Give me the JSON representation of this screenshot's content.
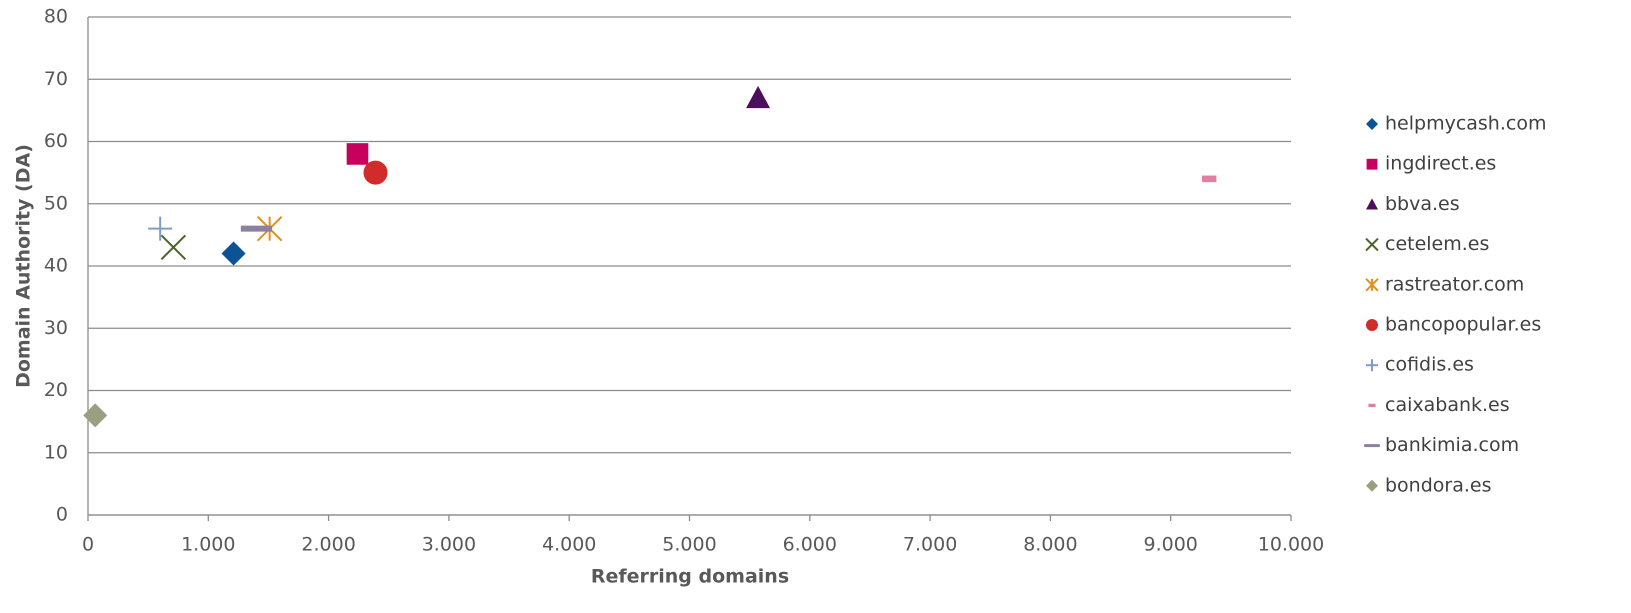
{
  "chart_data": {
    "type": "scatter",
    "x_label": "Referring domains",
    "y_label": "Domain Authority (DA)",
    "xlim": [
      0,
      10000
    ],
    "xticks": [
      0,
      {
        "value": 1000,
        "label": "1.000"
      },
      {
        "value": 2000,
        "label": "2.000"
      },
      {
        "value": 3000,
        "label": "3.000"
      },
      {
        "value": 4000,
        "label": "4.000"
      },
      {
        "value": 5000,
        "label": "5.000"
      },
      {
        "value": 6000,
        "label": "6.000"
      },
      {
        "value": 7000,
        "label": "7.000"
      },
      {
        "value": 8000,
        "label": "8.000"
      },
      {
        "value": 9000,
        "label": "9.000"
      },
      {
        "value": 10000,
        "label": "10.000"
      }
    ],
    "ylim": [
      0,
      80
    ],
    "yticks": [
      0,
      10,
      20,
      30,
      40,
      50,
      60,
      70,
      80
    ],
    "grid": "y",
    "legend": "right",
    "series": [
      {
        "name": "helpmycash.com",
        "color": "#0b5394",
        "marker": "diamond",
        "x": [
          1210
        ],
        "values": [
          42
        ]
      },
      {
        "name": "ingdirect.es",
        "color": "#c7005d",
        "marker": "square",
        "x": [
          2240
        ],
        "values": [
          58
        ]
      },
      {
        "name": "bbva.es",
        "color": "#4b0f5c",
        "marker": "triangle",
        "x": [
          5570
        ],
        "values": [
          67
        ]
      },
      {
        "name": "cetelem.es",
        "color": "#4f6228",
        "marker": "x",
        "x": [
          710
        ],
        "values": [
          43
        ]
      },
      {
        "name": "rastreator.com",
        "color": "#e3901c",
        "marker": "star",
        "x": [
          1510
        ],
        "values": [
          46
        ]
      },
      {
        "name": "bancopopular.es",
        "color": "#d22b2b",
        "marker": "circle",
        "x": [
          2390
        ],
        "values": [
          55
        ]
      },
      {
        "name": "cofidis.es",
        "color": "#7f9cc8",
        "marker": "plus",
        "x": [
          600
        ],
        "values": [
          46
        ]
      },
      {
        "name": "caixabank.es",
        "color": "#e07fa0",
        "marker": "dash",
        "x": [
          9320
        ],
        "values": [
          54
        ]
      },
      {
        "name": "bankimia.com",
        "color": "#8e7fa0",
        "marker": "longdash",
        "x": [
          1400
        ],
        "values": [
          46
        ]
      },
      {
        "name": "bondora.es",
        "color": "#9aa07f",
        "marker": "diamond",
        "x": [
          60
        ],
        "values": [
          16
        ]
      }
    ]
  }
}
